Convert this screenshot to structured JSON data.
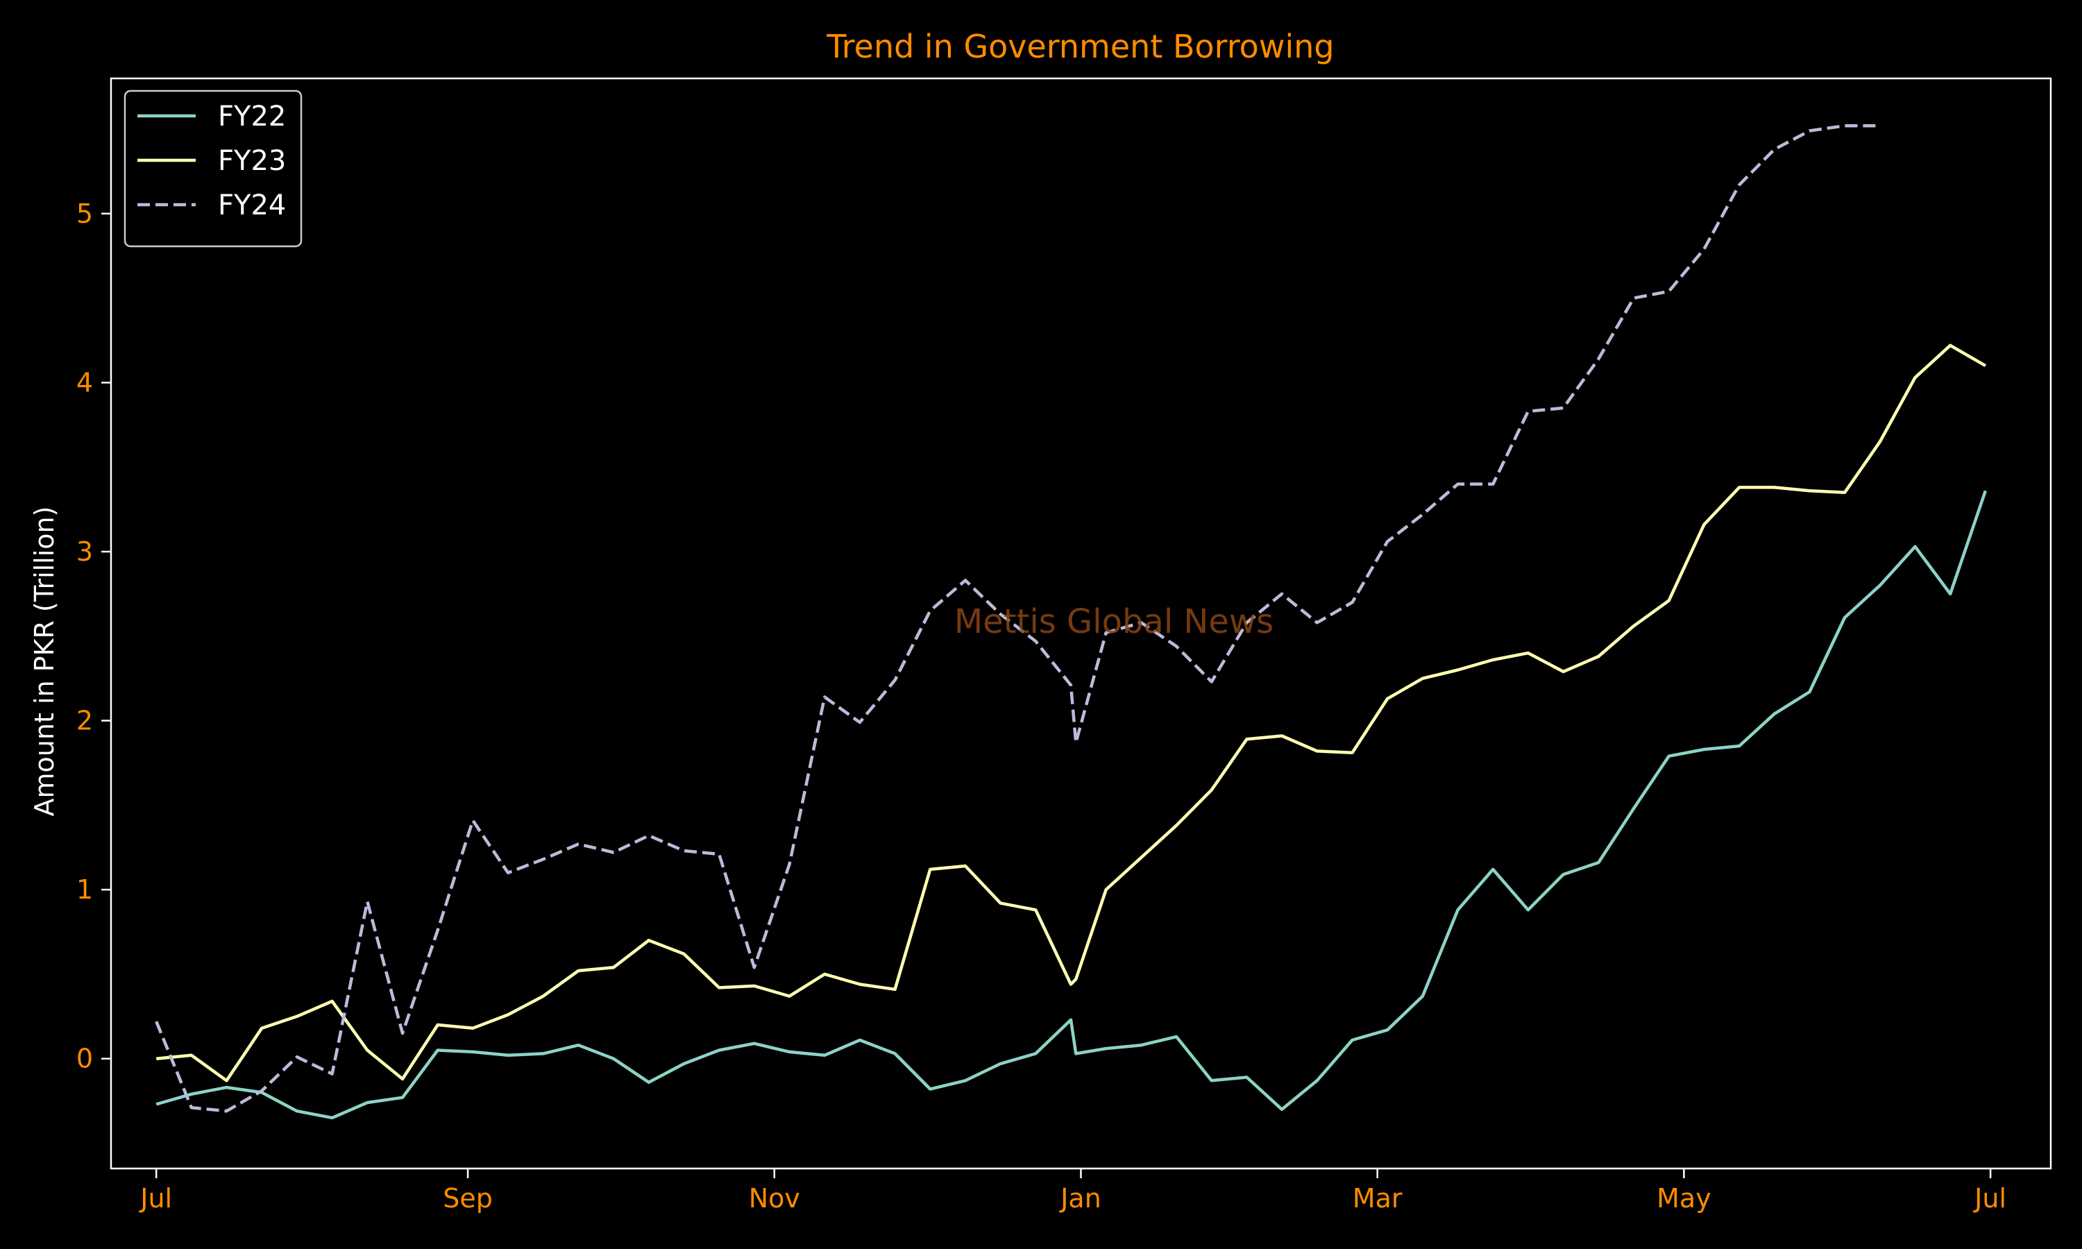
{
  "chart_data": {
    "type": "line",
    "title": "Trend in Government Borrowing",
    "xlabel": "",
    "ylabel": "Amount in PKR (Trillion)",
    "watermark": "Mettis Global News",
    "xlim": [
      "2000-06-22",
      "2001-07-13"
    ],
    "ylim": [
      -0.65,
      5.8
    ],
    "x_ticks": [
      {
        "date": "2000-07-01",
        "label": "Jul"
      },
      {
        "date": "2000-09-01",
        "label": "Sep"
      },
      {
        "date": "2000-11-01",
        "label": "Nov"
      },
      {
        "date": "2001-01-01",
        "label": "Jan"
      },
      {
        "date": "2001-03-01",
        "label": "Mar"
      },
      {
        "date": "2001-05-01",
        "label": "May"
      },
      {
        "date": "2001-07-01",
        "label": "Jul"
      }
    ],
    "y_ticks": [
      0,
      1,
      2,
      3,
      4,
      5
    ],
    "legend": {
      "position": "top-left"
    },
    "grid": false,
    "colors": {
      "background": "#000000",
      "title": "#ff8c00",
      "tick_labels": "#ff8c00",
      "axis_label": "#ffffff",
      "watermark": "#8b4513"
    },
    "series": [
      {
        "name": "FY22",
        "color": "#8dd3c7",
        "linestyle": "solid",
        "x": [
          "2000-07-01",
          "2000-07-08",
          "2000-07-15",
          "2000-07-22",
          "2000-07-29",
          "2000-08-05",
          "2000-08-12",
          "2000-08-19",
          "2000-08-26",
          "2000-09-02",
          "2000-09-09",
          "2000-09-16",
          "2000-09-23",
          "2000-09-30",
          "2000-10-07",
          "2000-10-14",
          "2000-10-21",
          "2000-10-28",
          "2000-11-04",
          "2000-11-11",
          "2000-11-18",
          "2000-11-25",
          "2000-12-02",
          "2000-12-09",
          "2000-12-16",
          "2000-12-23",
          "2000-12-30",
          "2000-12-31",
          "2001-01-06",
          "2001-01-13",
          "2001-01-20",
          "2001-01-27",
          "2001-02-03",
          "2001-02-10",
          "2001-02-17",
          "2001-02-24",
          "2001-03-03",
          "2001-03-10",
          "2001-03-17",
          "2001-03-24",
          "2001-03-31",
          "2001-04-07",
          "2001-04-14",
          "2001-04-21",
          "2001-04-28",
          "2001-05-05",
          "2001-05-12",
          "2001-05-19",
          "2001-05-26",
          "2001-06-02",
          "2001-06-09",
          "2001-06-16",
          "2001-06-23",
          "2001-06-30"
        ],
        "y": [
          -0.27,
          -0.21,
          -0.17,
          -0.2,
          -0.31,
          -0.35,
          -0.26,
          -0.23,
          0.05,
          0.04,
          0.02,
          0.03,
          0.08,
          0.0,
          -0.14,
          -0.03,
          0.05,
          0.09,
          0.04,
          0.02,
          0.11,
          0.03,
          -0.18,
          -0.13,
          -0.03,
          0.03,
          0.23,
          0.03,
          0.06,
          0.08,
          0.13,
          -0.13,
          -0.11,
          -0.3,
          -0.13,
          0.11,
          0.17,
          0.37,
          0.88,
          1.12,
          0.88,
          1.09,
          1.16,
          1.48,
          1.79,
          1.83,
          1.85,
          2.04,
          2.17,
          2.61,
          2.8,
          3.03,
          2.75,
          3.36
        ]
      },
      {
        "name": "FY23",
        "color": "#ffffb3",
        "linestyle": "solid",
        "x": [
          "2000-07-01",
          "2000-07-08",
          "2000-07-15",
          "2000-07-22",
          "2000-07-29",
          "2000-08-05",
          "2000-08-12",
          "2000-08-19",
          "2000-08-26",
          "2000-09-02",
          "2000-09-09",
          "2000-09-16",
          "2000-09-23",
          "2000-09-30",
          "2000-10-07",
          "2000-10-14",
          "2000-10-21",
          "2000-10-28",
          "2000-11-04",
          "2000-11-11",
          "2000-11-18",
          "2000-11-25",
          "2000-12-02",
          "2000-12-09",
          "2000-12-16",
          "2000-12-23",
          "2000-12-30",
          "2000-12-31",
          "2001-01-06",
          "2001-01-13",
          "2001-01-20",
          "2001-01-27",
          "2001-02-03",
          "2001-02-10",
          "2001-02-17",
          "2001-02-24",
          "2001-03-03",
          "2001-03-10",
          "2001-03-17",
          "2001-03-24",
          "2001-03-31",
          "2001-04-07",
          "2001-04-14",
          "2001-04-21",
          "2001-04-28",
          "2001-05-05",
          "2001-05-12",
          "2001-05-19",
          "2001-05-26",
          "2001-06-02",
          "2001-06-09",
          "2001-06-16",
          "2001-06-23",
          "2001-06-30"
        ],
        "y": [
          0.0,
          0.02,
          -0.13,
          0.18,
          0.25,
          0.34,
          0.05,
          -0.12,
          0.2,
          0.18,
          0.26,
          0.37,
          0.52,
          0.54,
          0.7,
          0.62,
          0.42,
          0.43,
          0.37,
          0.5,
          0.44,
          0.41,
          1.12,
          1.14,
          0.92,
          0.88,
          0.44,
          0.47,
          1.0,
          1.19,
          1.38,
          1.59,
          1.89,
          1.91,
          1.82,
          1.81,
          2.13,
          2.25,
          2.3,
          2.36,
          2.4,
          2.29,
          2.38,
          2.56,
          2.71,
          3.16,
          3.38,
          3.38,
          3.36,
          3.35,
          3.65,
          4.03,
          4.22,
          4.1
        ]
      },
      {
        "name": "FY24",
        "color": "#bebada",
        "linestyle": "dashed",
        "x": [
          "2000-07-01",
          "2000-07-08",
          "2000-07-15",
          "2000-07-22",
          "2000-07-29",
          "2000-08-05",
          "2000-08-12",
          "2000-08-19",
          "2000-08-26",
          "2000-09-02",
          "2000-09-09",
          "2000-09-16",
          "2000-09-23",
          "2000-09-30",
          "2000-10-07",
          "2000-10-14",
          "2000-10-21",
          "2000-10-28",
          "2000-11-04",
          "2000-11-11",
          "2000-11-18",
          "2000-11-25",
          "2000-12-02",
          "2000-12-09",
          "2000-12-16",
          "2000-12-23",
          "2000-12-30",
          "2000-12-31",
          "2001-01-06",
          "2001-01-13",
          "2001-01-20",
          "2001-01-27",
          "2001-02-03",
          "2001-02-10",
          "2001-02-17",
          "2001-02-24",
          "2001-03-03",
          "2001-03-10",
          "2001-03-17",
          "2001-03-24",
          "2001-03-31",
          "2001-04-07",
          "2001-04-14",
          "2001-04-21",
          "2001-04-28",
          "2001-05-05",
          "2001-05-12",
          "2001-05-19",
          "2001-05-26",
          "2001-06-02",
          "2001-06-09"
        ],
        "y": [
          0.22,
          -0.29,
          -0.31,
          -0.19,
          0.01,
          -0.09,
          0.93,
          0.15,
          0.76,
          1.41,
          1.1,
          1.18,
          1.27,
          1.22,
          1.32,
          1.23,
          1.21,
          0.54,
          1.15,
          2.14,
          1.99,
          2.24,
          2.65,
          2.83,
          2.63,
          2.47,
          2.21,
          1.87,
          2.52,
          2.58,
          2.44,
          2.23,
          2.58,
          2.75,
          2.58,
          2.7,
          3.06,
          3.22,
          3.4,
          3.4,
          3.83,
          3.85,
          4.14,
          4.5,
          4.54,
          4.79,
          5.17,
          5.38,
          5.49,
          5.52,
          5.52
        ]
      }
    ]
  }
}
